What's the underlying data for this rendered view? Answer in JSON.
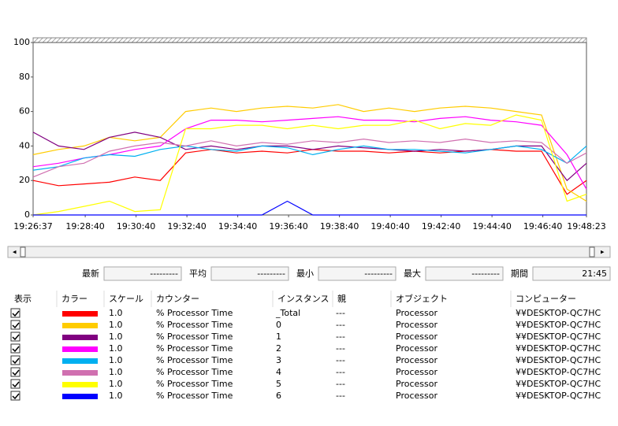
{
  "chart_data": {
    "type": "line",
    "x": [
      "19:26:37",
      "19:27:37",
      "19:28:37",
      "19:29:37",
      "19:30:37",
      "19:31:37",
      "19:32:37",
      "19:33:37",
      "19:34:37",
      "19:35:37",
      "19:36:37",
      "19:37:37",
      "19:38:37",
      "19:39:37",
      "19:40:37",
      "19:41:37",
      "19:42:37",
      "19:43:37",
      "19:44:37",
      "19:45:37",
      "19:46:37",
      "19:47:37",
      "19:48:23"
    ],
    "xlim": [
      "19:26:37",
      "19:48:23"
    ],
    "xticks": [
      "19:26:37",
      "19:28:40",
      "19:30:40",
      "19:32:40",
      "19:34:40",
      "19:36:40",
      "19:38:40",
      "19:40:40",
      "19:42:40",
      "19:44:40",
      "19:46:40",
      "19:48:23"
    ],
    "ylim": [
      0,
      100
    ],
    "yticks": [
      0,
      20,
      40,
      60,
      80,
      100
    ],
    "grid": false,
    "series": [
      {
        "name": "_Total",
        "color": "#ff0000",
        "values": [
          20,
          17,
          18,
          19,
          22,
          20,
          36,
          38,
          36,
          37,
          36,
          38,
          37,
          37,
          36,
          37,
          36,
          37,
          38,
          37,
          37,
          12,
          20
        ]
      },
      {
        "name": "0",
        "color": "#ffcc00",
        "values": [
          35,
          38,
          40,
          45,
          43,
          45,
          60,
          62,
          60,
          62,
          63,
          62,
          64,
          60,
          62,
          60,
          62,
          63,
          62,
          60,
          58,
          15,
          8
        ]
      },
      {
        "name": "1",
        "color": "#800080",
        "values": [
          48,
          40,
          38,
          45,
          48,
          45,
          38,
          40,
          38,
          40,
          40,
          38,
          40,
          39,
          38,
          37,
          38,
          37,
          38,
          40,
          40,
          20,
          30
        ]
      },
      {
        "name": "2",
        "color": "#ff00ff",
        "values": [
          28,
          30,
          33,
          35,
          38,
          40,
          50,
          55,
          55,
          54,
          55,
          56,
          57,
          55,
          55,
          54,
          56,
          57,
          55,
          54,
          52,
          35,
          15
        ]
      },
      {
        "name": "3",
        "color": "#00b0f0",
        "values": [
          26,
          28,
          33,
          35,
          34,
          38,
          40,
          38,
          37,
          40,
          39,
          35,
          38,
          40,
          38,
          38,
          37,
          36,
          38,
          40,
          38,
          30,
          40
        ]
      },
      {
        "name": "4",
        "color": "#d070b0",
        "values": [
          22,
          28,
          30,
          37,
          40,
          42,
          40,
          43,
          40,
          42,
          41,
          43,
          42,
          44,
          42,
          43,
          42,
          44,
          42,
          43,
          42,
          30,
          36
        ]
      },
      {
        "name": "5",
        "color": "#ffff00",
        "values": [
          0,
          2,
          5,
          8,
          2,
          3,
          50,
          50,
          52,
          52,
          50,
          52,
          50,
          52,
          52,
          55,
          50,
          53,
          52,
          58,
          55,
          8,
          12
        ]
      },
      {
        "name": "6",
        "color": "#0000ff",
        "values": [
          0,
          0,
          0,
          0,
          0,
          0,
          0,
          0,
          0,
          0,
          8,
          0,
          0,
          0,
          0,
          0,
          0,
          0,
          0,
          0,
          0,
          0,
          0
        ]
      }
    ]
  },
  "stats": {
    "labels": [
      "最新",
      "平均",
      "最小",
      "最大",
      "期間"
    ],
    "values": [
      "---------",
      "---------",
      "---------",
      "---------",
      "21:45"
    ]
  },
  "table": {
    "headers": [
      "表示",
      "カラー",
      "スケール",
      "カウンター",
      "インスタンス",
      "親",
      "オブジェクト",
      "コンピューター"
    ],
    "rows": [
      {
        "scale": "1.0",
        "counter": "% Processor Time",
        "parent": "---",
        "object": "Processor",
        "computer": "¥¥DESKTOP-QC7HC"
      },
      {
        "scale": "1.0",
        "counter": "% Processor Time",
        "parent": "---",
        "object": "Processor",
        "computer": "¥¥DESKTOP-QC7HC"
      },
      {
        "scale": "1.0",
        "counter": "% Processor Time",
        "parent": "---",
        "object": "Processor",
        "computer": "¥¥DESKTOP-QC7HC"
      },
      {
        "scale": "1.0",
        "counter": "% Processor Time",
        "parent": "---",
        "object": "Processor",
        "computer": "¥¥DESKTOP-QC7HC"
      },
      {
        "scale": "1.0",
        "counter": "% Processor Time",
        "parent": "---",
        "object": "Processor",
        "computer": "¥¥DESKTOP-QC7HC"
      },
      {
        "scale": "1.0",
        "counter": "% Processor Time",
        "parent": "---",
        "object": "Processor",
        "computer": "¥¥DESKTOP-QC7HC"
      },
      {
        "scale": "1.0",
        "counter": "% Processor Time",
        "parent": "---",
        "object": "Processor",
        "computer": "¥¥DESKTOP-QC7HC"
      },
      {
        "scale": "1.0",
        "counter": "% Processor Time",
        "parent": "---",
        "object": "Processor",
        "computer": "¥¥DESKTOP-QC7HC"
      }
    ]
  }
}
